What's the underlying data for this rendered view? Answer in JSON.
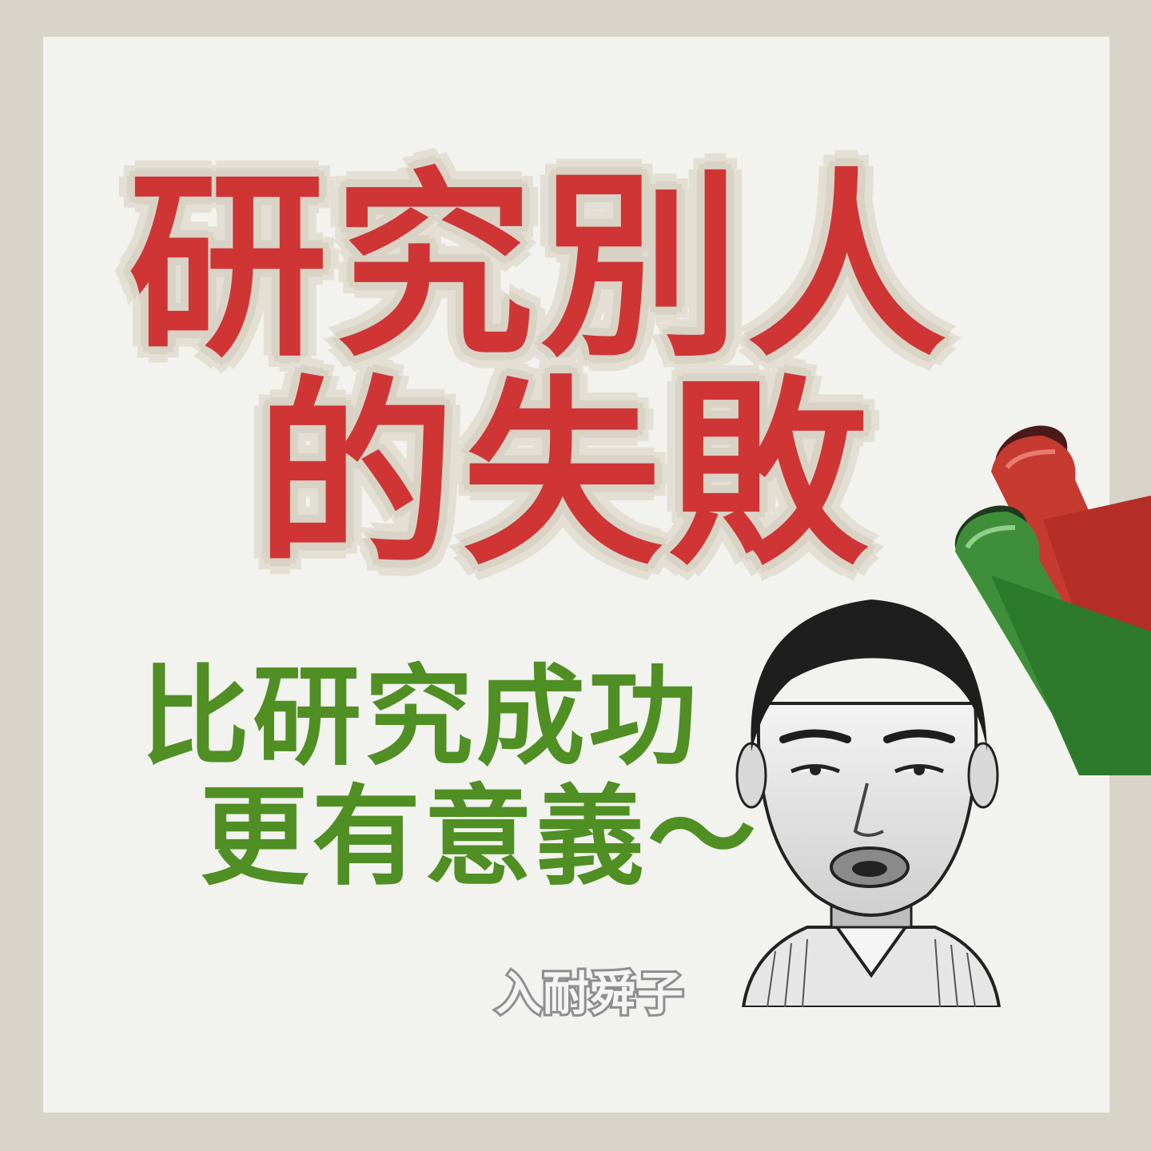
{
  "headline": {
    "line1": "研究別人",
    "line2": "的失敗"
  },
  "subheadline": {
    "line1": "比研究成功",
    "line2": "更有意義～"
  },
  "signature": "入耐舜子",
  "colors": {
    "background": "#d8d4c9",
    "card": "#f2f2ee",
    "headline": "#cf3535",
    "subheadline": "#4f8f23",
    "marker_red": "#c63a30",
    "marker_green": "#3f8f3a"
  }
}
